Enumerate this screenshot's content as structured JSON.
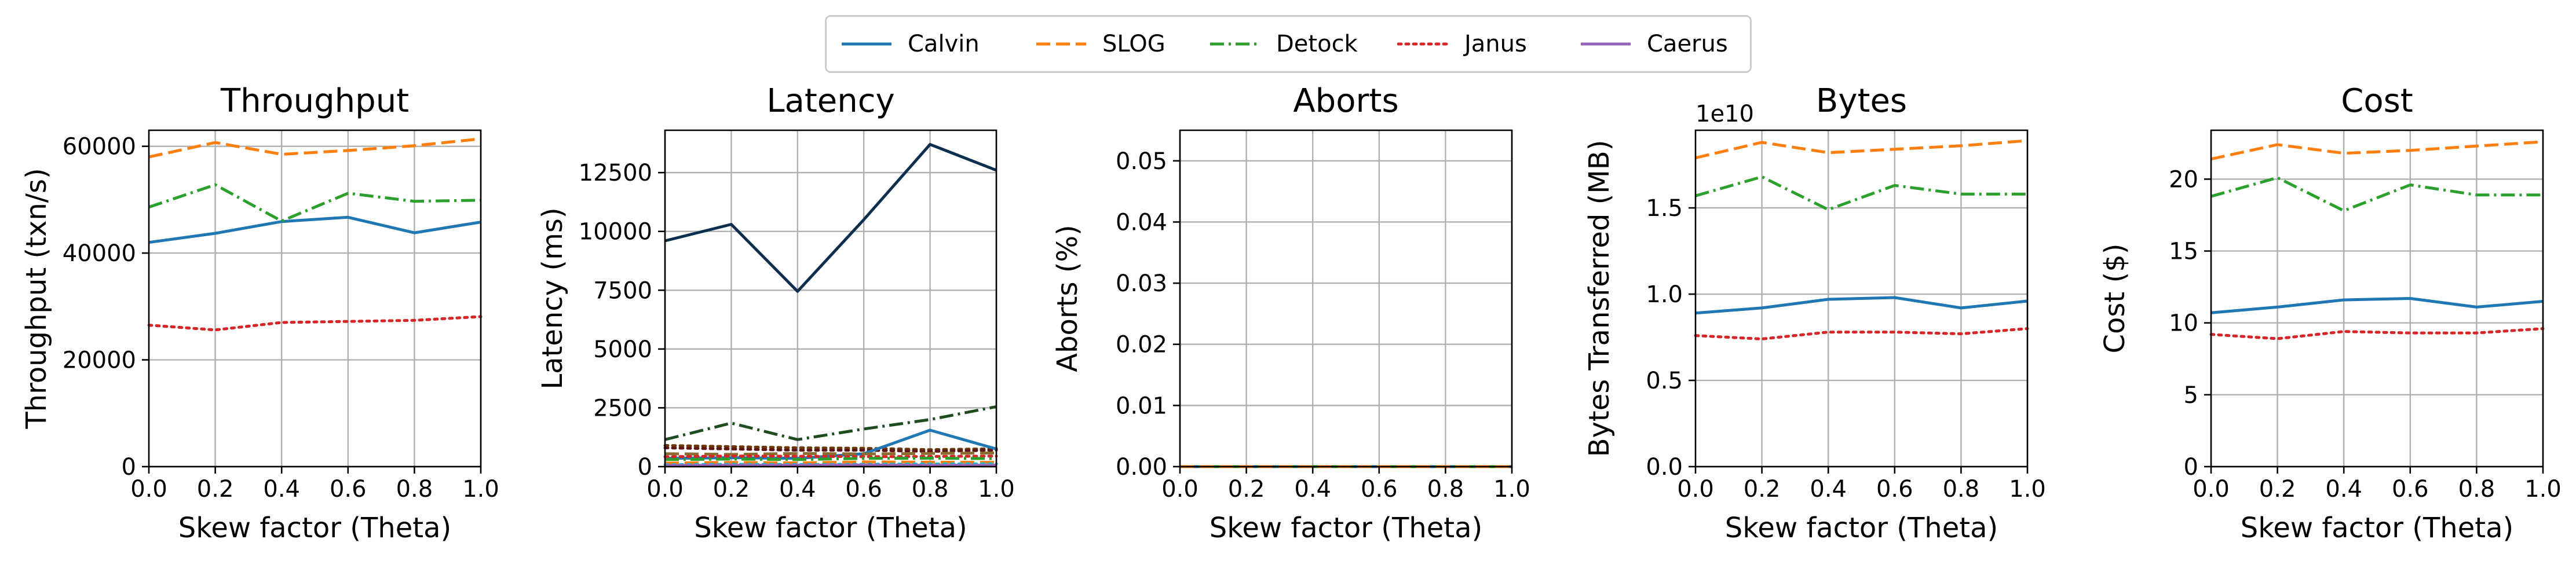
{
  "legend": [
    {
      "name": "Calvin",
      "color": "#1f77b4",
      "dash": "solid"
    },
    {
      "name": "SLOG",
      "color": "#ff7f0e",
      "dash": "dashed"
    },
    {
      "name": "Detock",
      "color": "#2ca02c",
      "dash": "dashdot"
    },
    {
      "name": "Janus",
      "color": "#d62728",
      "dash": "dotted"
    },
    {
      "name": "Caerus",
      "color": "#9467bd",
      "dash": "solid"
    }
  ],
  "chart_data": [
    {
      "type": "line",
      "title": "Throughput",
      "xlabel": "Skew factor (Theta)",
      "ylabel": "Throughput (txn/s)",
      "xlim": [
        0,
        1.0
      ],
      "ylim": [
        0,
        63000
      ],
      "xticks": [
        "0.0",
        "0.2",
        "0.4",
        "0.6",
        "0.8",
        "1.0"
      ],
      "yticks": [
        {
          "v": 0,
          "label": "0"
        },
        {
          "v": 20000,
          "label": "20000"
        },
        {
          "v": 40000,
          "label": "40000"
        },
        {
          "v": 60000,
          "label": "60000"
        }
      ],
      "grid": true,
      "x": [
        0,
        0.2,
        0.4,
        0.6,
        0.8,
        1.0
      ],
      "series": [
        {
          "name": "Calvin",
          "color": "#1f77b4",
          "dash": "solid",
          "values": [
            42000,
            43700,
            45900,
            46700,
            43800,
            45800
          ]
        },
        {
          "name": "SLOG",
          "color": "#ff7f0e",
          "dash": "dashed",
          "values": [
            58000,
            60700,
            58500,
            59200,
            60100,
            61400
          ]
        },
        {
          "name": "Detock",
          "color": "#2ca02c",
          "dash": "dashdot",
          "values": [
            48600,
            52800,
            46000,
            51200,
            49700,
            49900
          ]
        },
        {
          "name": "Janus",
          "color": "#d62728",
          "dash": "dotted",
          "values": [
            26500,
            25600,
            27000,
            27200,
            27400,
            28100
          ]
        }
      ]
    },
    {
      "type": "line",
      "title": "Latency",
      "xlabel": "Skew factor (Theta)",
      "ylabel": "Latency (ms)",
      "xlim": [
        0,
        1.0
      ],
      "ylim": [
        0,
        14300
      ],
      "xticks": [
        "0.0",
        "0.2",
        "0.4",
        "0.6",
        "0.8",
        "1.0"
      ],
      "yticks": [
        {
          "v": 0,
          "label": "0"
        },
        {
          "v": 2500,
          "label": "2500"
        },
        {
          "v": 5000,
          "label": "5000"
        },
        {
          "v": 7500,
          "label": "7500"
        },
        {
          "v": 10000,
          "label": "10000"
        },
        {
          "v": 12500,
          "label": "12500"
        }
      ],
      "grid": true,
      "x": [
        0,
        0.2,
        0.4,
        0.6,
        0.8,
        1.0
      ],
      "series": [
        {
          "color": "#0d2f4f",
          "dash": "solid",
          "values": [
            9600,
            10300,
            7450,
            10500,
            13700,
            12600
          ]
        },
        {
          "color": "#1f4d1f",
          "dash": "dashdot",
          "values": [
            1150,
            1850,
            1150,
            1600,
            2000,
            2550
          ]
        },
        {
          "color": "#6b3a0a",
          "dash": "dotted",
          "values": [
            900,
            850,
            800,
            780,
            720,
            760
          ]
        },
        {
          "color": "#5e1616",
          "dash": "dotted",
          "values": [
            800,
            750,
            700,
            700,
            650,
            700
          ]
        },
        {
          "color": "#1f77b4",
          "dash": "solid",
          "values": [
            350,
            380,
            350,
            550,
            1550,
            750
          ]
        },
        {
          "color": "#8c6d31",
          "dash": "dashed",
          "values": [
            550,
            520,
            560,
            540,
            560,
            580
          ]
        },
        {
          "color": "#d62728",
          "dash": "dotted",
          "values": [
            420,
            450,
            440,
            420,
            430,
            450
          ]
        },
        {
          "color": "#2ca02c",
          "dash": "dashdot",
          "values": [
            300,
            320,
            300,
            350,
            360,
            340
          ]
        },
        {
          "color": "#ff7f0e",
          "dash": "dashed",
          "values": [
            150,
            180,
            160,
            200,
            190,
            180
          ]
        },
        {
          "color": "#17becf",
          "dash": "dotted",
          "values": [
            80,
            100,
            90,
            100,
            110,
            120
          ]
        },
        {
          "color": "#9467bd",
          "dash": "solid",
          "values": [
            50,
            60,
            60,
            70,
            60,
            60
          ]
        }
      ]
    },
    {
      "type": "line",
      "title": "Aborts",
      "xlabel": "Skew factor (Theta)",
      "ylabel": "Aborts (%)",
      "xlim": [
        0,
        1.0
      ],
      "ylim": [
        0,
        0.055
      ],
      "xticks": [
        "0.0",
        "0.2",
        "0.4",
        "0.6",
        "0.8",
        "1.0"
      ],
      "yticks": [
        {
          "v": 0,
          "label": "0.00"
        },
        {
          "v": 0.01,
          "label": "0.01"
        },
        {
          "v": 0.02,
          "label": "0.02"
        },
        {
          "v": 0.03,
          "label": "0.03"
        },
        {
          "v": 0.04,
          "label": "0.04"
        },
        {
          "v": 0.05,
          "label": "0.05"
        }
      ],
      "grid": true,
      "x": [
        0,
        0.2,
        0.4,
        0.6,
        0.8,
        1.0
      ],
      "series": [
        {
          "name": "Calvin",
          "color": "#1f77b4",
          "dash": "solid",
          "values": [
            0,
            0,
            0,
            0,
            0,
            0
          ]
        },
        {
          "name": "Detock",
          "color": "#2ca02c",
          "dash": "dashdot",
          "values": [
            0,
            0,
            0,
            0,
            0,
            0
          ]
        },
        {
          "name": "SLOG",
          "color": "#ff7f0e",
          "dash": "dashed",
          "values": [
            0,
            0,
            0,
            0,
            0,
            0
          ]
        }
      ]
    },
    {
      "type": "line",
      "title": "Bytes",
      "xlabel": "Skew factor (Theta)",
      "ylabel": "Bytes Transferred (MB)",
      "offset_label": "1e10",
      "xlim": [
        0,
        1.0
      ],
      "ylim": [
        0,
        1.95
      ],
      "xticks": [
        "0.0",
        "0.2",
        "0.4",
        "0.6",
        "0.8",
        "1.0"
      ],
      "yticks": [
        {
          "v": 0,
          "label": "0.0"
        },
        {
          "v": 0.5,
          "label": "0.5"
        },
        {
          "v": 1.0,
          "label": "1.0"
        },
        {
          "v": 1.5,
          "label": "1.5"
        }
      ],
      "grid": true,
      "x": [
        0,
        0.2,
        0.4,
        0.6,
        0.8,
        1.0
      ],
      "series": [
        {
          "name": "Calvin",
          "color": "#1f77b4",
          "dash": "solid",
          "values": [
            0.89,
            0.92,
            0.97,
            0.98,
            0.92,
            0.96
          ]
        },
        {
          "name": "SLOG",
          "color": "#ff7f0e",
          "dash": "dashed",
          "values": [
            1.79,
            1.88,
            1.82,
            1.84,
            1.86,
            1.89
          ]
        },
        {
          "name": "Detock",
          "color": "#2ca02c",
          "dash": "dashdot",
          "values": [
            1.57,
            1.68,
            1.49,
            1.63,
            1.58,
            1.58
          ]
        },
        {
          "name": "Janus",
          "color": "#d62728",
          "dash": "dotted",
          "values": [
            0.76,
            0.74,
            0.78,
            0.78,
            0.77,
            0.8
          ]
        }
      ]
    },
    {
      "type": "line",
      "title": "Cost",
      "xlabel": "Skew factor (Theta)",
      "ylabel": "Cost ($)",
      "xlim": [
        0,
        1.0
      ],
      "ylim": [
        0,
        23.4
      ],
      "xticks": [
        "0.0",
        "0.2",
        "0.4",
        "0.6",
        "0.8",
        "1.0"
      ],
      "yticks": [
        {
          "v": 0,
          "label": "0"
        },
        {
          "v": 5,
          "label": "5"
        },
        {
          "v": 10,
          "label": "10"
        },
        {
          "v": 15,
          "label": "15"
        },
        {
          "v": 20,
          "label": "20"
        }
      ],
      "grid": true,
      "x": [
        0,
        0.2,
        0.4,
        0.6,
        0.8,
        1.0
      ],
      "series": [
        {
          "name": "Calvin",
          "color": "#1f77b4",
          "dash": "solid",
          "values": [
            10.7,
            11.1,
            11.6,
            11.7,
            11.1,
            11.5
          ]
        },
        {
          "name": "SLOG",
          "color": "#ff7f0e",
          "dash": "dashed",
          "values": [
            21.4,
            22.4,
            21.8,
            22.0,
            22.3,
            22.6
          ]
        },
        {
          "name": "Detock",
          "color": "#2ca02c",
          "dash": "dashdot",
          "values": [
            18.8,
            20.1,
            17.8,
            19.6,
            18.9,
            18.9
          ]
        },
        {
          "name": "Janus",
          "color": "#d62728",
          "dash": "dotted",
          "values": [
            9.2,
            8.9,
            9.4,
            9.3,
            9.3,
            9.6
          ]
        }
      ]
    }
  ]
}
